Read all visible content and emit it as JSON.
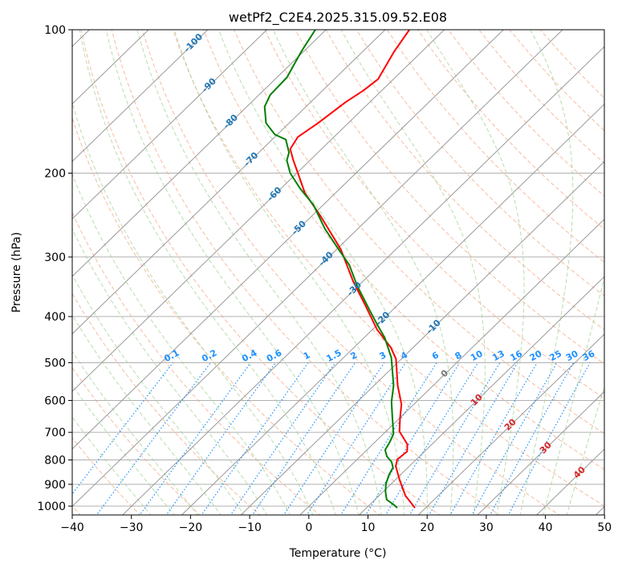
{
  "chart_data": {
    "type": "line",
    "subtype": "skew-T log-P",
    "title": "wetPf2_C2E4.2025.315.09.52.E08",
    "xlabel": "Temperature (°C)",
    "ylabel": "Pressure (hPa)",
    "xlim": [
      -40,
      50
    ],
    "ylim": [
      1043,
      100
    ],
    "x_ticks": [
      "−40",
      "−30",
      "−20",
      "−10",
      "0",
      "10",
      "20",
      "30",
      "40",
      "50"
    ],
    "x_tick_values": [
      -40,
      -30,
      -20,
      -10,
      0,
      10,
      20,
      30,
      40,
      50
    ],
    "y_ticks": [
      "100",
      "200",
      "300",
      "400",
      "500",
      "600",
      "700",
      "800",
      "900",
      "1000"
    ],
    "y_tick_values": [
      100,
      200,
      300,
      400,
      500,
      600,
      700,
      800,
      900,
      1000
    ],
    "grid": true,
    "isotherm_labels": [
      {
        "t": -100,
        "text": "-100"
      },
      {
        "t": -90,
        "text": "-90"
      },
      {
        "t": -80,
        "text": "-80"
      },
      {
        "t": -70,
        "text": "-70"
      },
      {
        "t": -60,
        "text": "-60"
      },
      {
        "t": -50,
        "text": "-50"
      },
      {
        "t": -40,
        "text": "-40"
      },
      {
        "t": -30,
        "text": "-30"
      },
      {
        "t": -20,
        "text": "-20"
      },
      {
        "t": -10,
        "text": "-10"
      },
      {
        "t": 0,
        "text": "0"
      },
      {
        "t": 10,
        "text": "10"
      },
      {
        "t": 20,
        "text": "20"
      },
      {
        "t": 30,
        "text": "30"
      },
      {
        "t": 40,
        "text": "40"
      }
    ],
    "mixing_ratio_labels": [
      "0.1",
      "0.2",
      "0.4",
      "0.6",
      "1",
      "1.5",
      "2",
      "3",
      "4",
      "6",
      "8",
      "10",
      "13",
      "16",
      "20",
      "25",
      "30",
      "36"
    ],
    "mixing_ratio_values": [
      0.1,
      0.2,
      0.4,
      0.6,
      1,
      1.5,
      2,
      3,
      4,
      6,
      8,
      10,
      13,
      16,
      20,
      25,
      30,
      36
    ],
    "colors": {
      "temperature": "#ff0000",
      "dewpoint": "#008000",
      "isotherm": "#999999",
      "dry_adiabat": "#f4a582",
      "moist_adiabat": "#a6d49a",
      "mixing_ratio": "#1e90ff",
      "cold_label": "#1f77b4",
      "warm_label": "#d62728",
      "zero_label": "#777777"
    },
    "series": [
      {
        "name": "temperature",
        "pressure": [
          1008,
          951,
          880,
          824,
          798,
          768,
          742,
          697,
          652,
          611,
          558,
          491,
          465,
          426,
          379,
          337,
          289,
          247,
          220,
          200,
          188,
          178,
          168,
          157,
          142,
          134,
          127,
          111,
          100
        ],
        "values": [
          18.2,
          14.5,
          10.7,
          7.7,
          6.8,
          7.1,
          5.9,
          2.3,
          0.0,
          -2.1,
          -6.0,
          -10.9,
          -13.7,
          -19.2,
          -25.4,
          -31.7,
          -39.3,
          -48.3,
          -55.2,
          -59.8,
          -62.8,
          -65.3,
          -66.1,
          -65.1,
          -64.1,
          -63.1,
          -62.6,
          -64.7,
          -65.9
        ]
      },
      {
        "name": "dewpoint",
        "pressure": [
          1008,
          992,
          969,
          932,
          897,
          856,
          830,
          808,
          786,
          762,
          733,
          705,
          652,
          604,
          558,
          488,
          443,
          417,
          386,
          344,
          312,
          286,
          262,
          233,
          216,
          200,
          188,
          181,
          170,
          166,
          157,
          145,
          137,
          126,
          111,
          100
        ],
        "values": [
          15.2,
          14.0,
          12.0,
          10.4,
          9.1,
          8.0,
          7.5,
          6.3,
          4.5,
          3.1,
          2.5,
          1.7,
          -1.3,
          -4.2,
          -6.7,
          -11.9,
          -16.5,
          -19.9,
          -24.1,
          -30.3,
          -35.1,
          -40.3,
          -45.5,
          -51.7,
          -56.6,
          -61.1,
          -63.9,
          -64.9,
          -67.7,
          -70.4,
          -73.9,
          -77.0,
          -78.1,
          -78.3,
          -80.4,
          -81.8
        ]
      }
    ]
  }
}
